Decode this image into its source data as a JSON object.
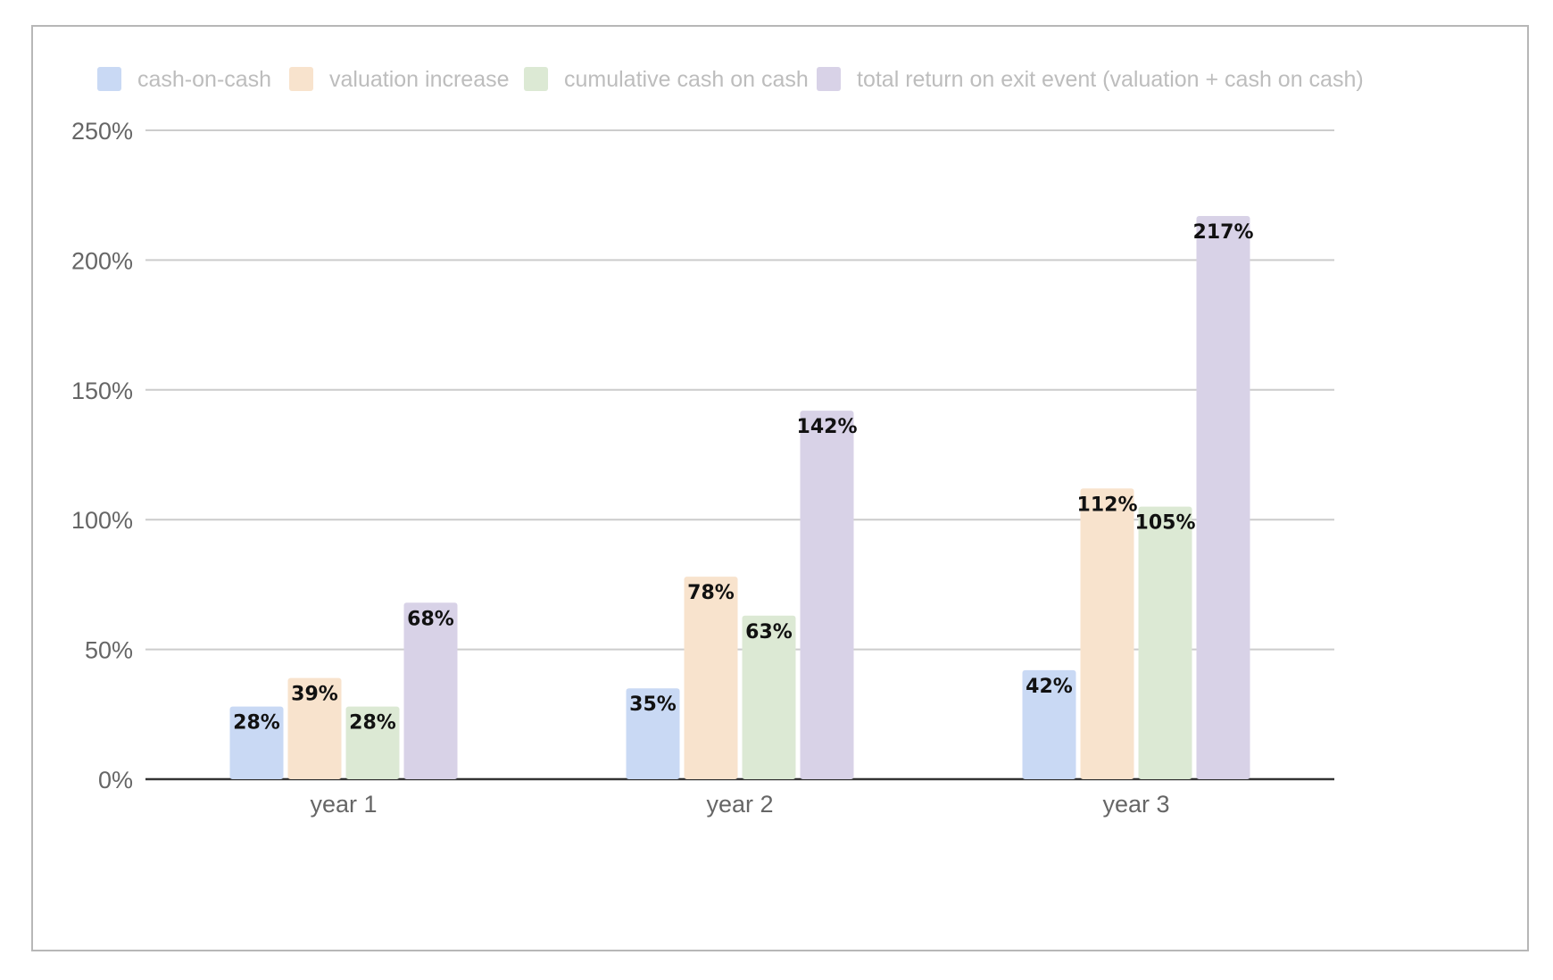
{
  "chart_data": {
    "type": "bar",
    "title": "",
    "xlabel": "",
    "ylabel": "",
    "categories": [
      "year 1",
      "year 2",
      "year 3"
    ],
    "series": [
      {
        "name": "cash-on-cash",
        "color": "#c9d9f4",
        "values": [
          28,
          35,
          42
        ],
        "labels": [
          "28%",
          "35%",
          "42%"
        ]
      },
      {
        "name": "valuation increase",
        "color": "#f8e3cd",
        "values": [
          39,
          78,
          112
        ],
        "labels": [
          "39%",
          "78%",
          "112%"
        ]
      },
      {
        "name": "cumulative cash on cash",
        "color": "#dce9d4",
        "values": [
          28,
          63,
          105
        ],
        "labels": [
          "28%",
          "63%",
          "105%"
        ]
      },
      {
        "name": "total return on exit event (valuation + cash on cash)",
        "color": "#d8d2e7",
        "values": [
          68,
          142,
          217
        ],
        "labels": [
          "68%",
          "142%",
          "217%"
        ]
      }
    ],
    "yticks": [
      "0%",
      "50%",
      "100%",
      "150%",
      "200%",
      "250%"
    ],
    "ylim": [
      0,
      250
    ],
    "grid": true,
    "legend": "top"
  }
}
